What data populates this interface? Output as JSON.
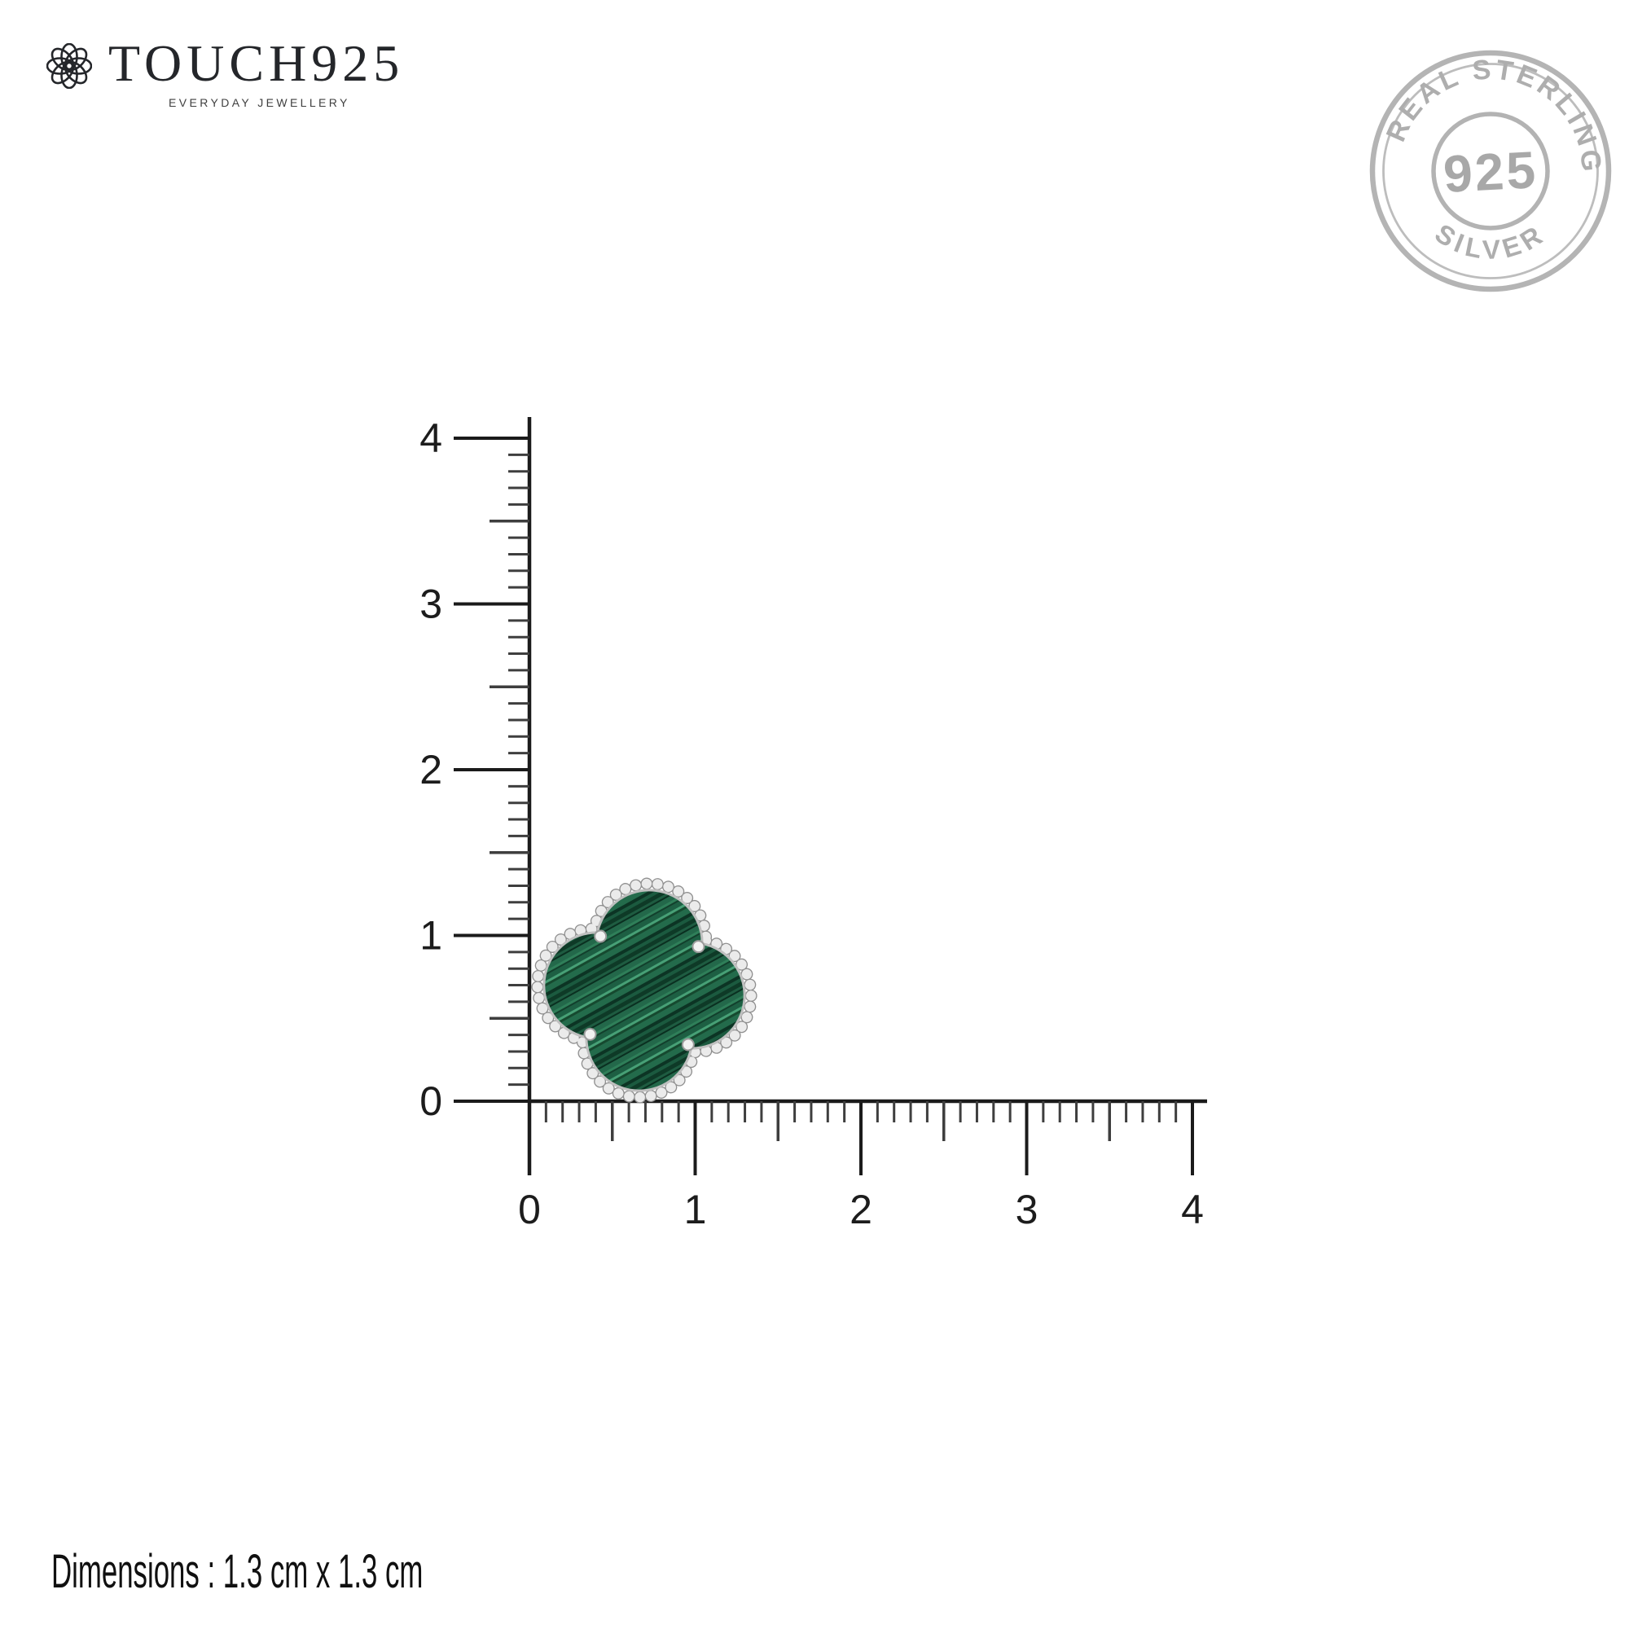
{
  "brand": {
    "name": "TOUCH925",
    "tagline": "EVERYDAY JEWELLERY",
    "icon": "rosette-icon",
    "text_color": "#24262a"
  },
  "stamp": {
    "arc_top_text": "REAL STERLING",
    "center_text": "925",
    "arc_bottom_text": "SILVER",
    "color": "#b1b1b1"
  },
  "ruler": {
    "unit_count": 4,
    "minor_per_unit": 10,
    "x_labels": [
      "0",
      "1",
      "2",
      "3",
      "4"
    ],
    "y_labels": [
      "0",
      "1",
      "2",
      "3",
      "4"
    ],
    "line_color": "#1b1b1b",
    "minor_tick_color": "#3e3e3e"
  },
  "product": {
    "name": "malachite-clover-stud",
    "bead_color": "#ebebeb",
    "bead_edge_color": "#909090",
    "rim_color": "#bfbfbf",
    "stone_bands": [
      [
        "#0e3a27",
        5
      ],
      [
        "#1e5c41",
        3
      ],
      [
        "#0a2f20",
        2
      ],
      [
        "#23684a",
        6
      ],
      [
        "#2f7f59",
        3
      ],
      [
        "#123f2c",
        2
      ],
      [
        "#1d5f43",
        6
      ],
      [
        "#47a076",
        3
      ],
      [
        "#16492f",
        3
      ],
      [
        "#236b4b",
        7
      ],
      [
        "#0c3424",
        4
      ],
      [
        "#1b5a3f",
        4
      ]
    ]
  },
  "caption": {
    "dimensions": "Dimensions : 1.3 cm x 1.3 cm"
  }
}
